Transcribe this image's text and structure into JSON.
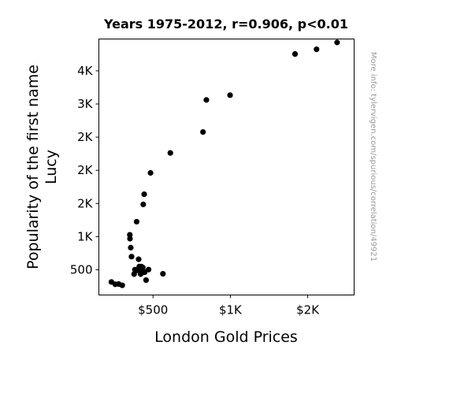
{
  "chart_data": {
    "type": "scatter",
    "title": "Years 1975-2012, r=0.906, p<0.01",
    "xlabel": "London Gold Prices",
    "ylabel": [
      "Popularity of the first name",
      "Lucy"
    ],
    "watermark": "More info: tylervigen.com/spurious/correlation/49921",
    "xlim": [
      150,
      1800
    ],
    "ylim": [
      120,
      3980
    ],
    "x_ticks": [
      {
        "value": 500,
        "label": "$500"
      },
      {
        "value": 1000,
        "label": "$1K"
      },
      {
        "value": 1500,
        "label": "$2K"
      }
    ],
    "y_ticks": [
      {
        "value": 500,
        "label": "500"
      },
      {
        "value": 1000,
        "label": "1K"
      },
      {
        "value": 1500,
        "label": "2K"
      },
      {
        "value": 2000,
        "label": "2K"
      },
      {
        "value": 2500,
        "label": "2K"
      },
      {
        "value": 3000,
        "label": "3K"
      },
      {
        "value": 3500,
        "label": "4K"
      }
    ],
    "grid": false,
    "marker_color": "#000000",
    "points": [
      {
        "x": 231,
        "y": 317
      },
      {
        "x": 256,
        "y": 282
      },
      {
        "x": 278,
        "y": 285
      },
      {
        "x": 301,
        "y": 266
      },
      {
        "x": 350,
        "y": 1028
      },
      {
        "x": 351,
        "y": 969
      },
      {
        "x": 356,
        "y": 834
      },
      {
        "x": 361,
        "y": 698
      },
      {
        "x": 378,
        "y": 435
      },
      {
        "x": 383,
        "y": 502
      },
      {
        "x": 394,
        "y": 1225
      },
      {
        "x": 398,
        "y": 493
      },
      {
        "x": 405,
        "y": 504
      },
      {
        "x": 407,
        "y": 659
      },
      {
        "x": 411,
        "y": 549
      },
      {
        "x": 418,
        "y": 517
      },
      {
        "x": 420,
        "y": 435
      },
      {
        "x": 425,
        "y": 548
      },
      {
        "x": 428,
        "y": 454
      },
      {
        "x": 430,
        "y": 507
      },
      {
        "x": 434,
        "y": 533
      },
      {
        "x": 437,
        "y": 1486
      },
      {
        "x": 443,
        "y": 1639
      },
      {
        "x": 446,
        "y": 464
      },
      {
        "x": 455,
        "y": 345
      },
      {
        "x": 471,
        "y": 503
      },
      {
        "x": 484,
        "y": 1961
      },
      {
        "x": 564,
        "y": 440
      },
      {
        "x": 612,
        "y": 2262
      },
      {
        "x": 823,
        "y": 2578
      },
      {
        "x": 845,
        "y": 3061
      },
      {
        "x": 998,
        "y": 3133
      },
      {
        "x": 1418,
        "y": 3754
      },
      {
        "x": 1557,
        "y": 3825
      },
      {
        "x": 1690,
        "y": 3928
      }
    ]
  }
}
